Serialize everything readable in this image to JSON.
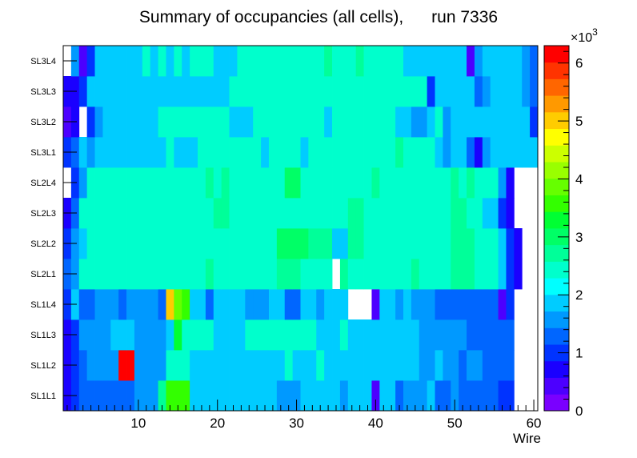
{
  "chart_data": {
    "type": "heatmap",
    "title": "Summary of occupancies (all cells),      run 7336",
    "xlabel": "Wire",
    "ylabel": "",
    "x_range": [
      0.5,
      60.5
    ],
    "x_ticks": [
      10,
      20,
      30,
      40,
      50,
      60
    ],
    "y_labels": [
      "SL1L1",
      "SL1L2",
      "SL1L3",
      "SL1L4",
      "SL2L1",
      "SL2L2",
      "SL2L3",
      "SL2L4",
      "SL3L1",
      "SL3L2",
      "SL3L3",
      "SL3L4"
    ],
    "z_range": [
      0,
      6300
    ],
    "z_multiplier_label": "×10",
    "z_multiplier_exp": "3",
    "z_tick_labels": [
      "0",
      "1",
      "2",
      "3",
      "4",
      "5",
      "6"
    ],
    "z_tick_values": [
      0,
      1000,
      2000,
      3000,
      4000,
      5000,
      6000
    ],
    "palette": [
      "#7a00ff",
      "#4c00ff",
      "#1a00ff",
      "#0033ff",
      "#0066ff",
      "#0099ff",
      "#00ccff",
      "#00ffff",
      "#00ffcc",
      "#00ff99",
      "#00ff66",
      "#00ff33",
      "#33ff00",
      "#66ff00",
      "#99ff00",
      "#ccff00",
      "#ffff00",
      "#ffcc00",
      "#ff9900",
      "#ff6600",
      "#ff3300",
      "#ff0000"
    ],
    "rows": [
      {
        "layer": "SL1L1",
        "values": [
          800,
          1100,
          1400,
          1400,
          1400,
          1400,
          1400,
          1400,
          1400,
          1600,
          1600,
          1700,
          2600,
          3500,
          3500,
          3500,
          2000,
          2000,
          2000,
          2000,
          2000,
          2000,
          2000,
          2000,
          2000,
          2000,
          2000,
          1700,
          1700,
          1700,
          2000,
          2000,
          2000,
          2000,
          2000,
          1700,
          2000,
          2000,
          2000,
          450,
          2000,
          2000,
          1400,
          1700,
          1700,
          1700,
          2000,
          1400,
          1400,
          1700,
          1400,
          1400,
          1400,
          1400,
          1400,
          1100,
          1100,
          0,
          0,
          0
        ]
      },
      {
        "layer": "SL1L2",
        "values": [
          700,
          1100,
          1400,
          1700,
          1700,
          1700,
          1700,
          6200,
          6200,
          1700,
          1700,
          1700,
          1700,
          2300,
          2300,
          2300,
          2000,
          2000,
          2000,
          2000,
          2000,
          2000,
          2000,
          2000,
          2000,
          2000,
          2000,
          2000,
          2300,
          2000,
          2000,
          2000,
          2300,
          2000,
          2000,
          2000,
          2000,
          2000,
          2000,
          2000,
          2000,
          2000,
          2000,
          2000,
          2000,
          1700,
          1700,
          2000,
          1700,
          1700,
          1400,
          1700,
          1700,
          1400,
          1400,
          1400,
          1400,
          0,
          0,
          0
        ]
      },
      {
        "layer": "SL1L3",
        "values": [
          700,
          1100,
          1700,
          1700,
          1700,
          1700,
          2000,
          2000,
          2000,
          1700,
          1700,
          1700,
          1700,
          2000,
          3200,
          2300,
          2300,
          2300,
          2300,
          2000,
          2000,
          2000,
          2000,
          2300,
          2300,
          2300,
          2300,
          2300,
          2300,
          2300,
          2300,
          2300,
          2000,
          2000,
          2000,
          2300,
          2000,
          2000,
          2000,
          2000,
          2000,
          2000,
          2000,
          2000,
          2000,
          1700,
          1700,
          1700,
          1700,
          1700,
          1700,
          1400,
          1400,
          1400,
          1400,
          1400,
          1400,
          0,
          0,
          0
        ]
      },
      {
        "layer": "SL1L4",
        "values": [
          1000,
          2000,
          1400,
          1400,
          1700,
          1700,
          1700,
          1400,
          1700,
          1700,
          1700,
          1700,
          1400,
          5100,
          3800,
          3500,
          2000,
          2000,
          1400,
          2000,
          2000,
          2000,
          2000,
          1700,
          1700,
          1700,
          2000,
          2000,
          1400,
          1400,
          2000,
          2000,
          1700,
          2000,
          2000,
          2000,
          0,
          0,
          0,
          500,
          2000,
          2000,
          1700,
          2000,
          1700,
          1700,
          1700,
          1400,
          1400,
          1400,
          1400,
          1400,
          1400,
          1400,
          1400,
          500,
          1100,
          0,
          0,
          0
        ]
      },
      {
        "layer": "SL2L1",
        "values": [
          1400,
          1700,
          2300,
          2300,
          2300,
          2300,
          2300,
          2300,
          2300,
          2300,
          2300,
          2300,
          2300,
          2300,
          2300,
          2300,
          2300,
          2300,
          2600,
          2300,
          2300,
          2300,
          2300,
          2300,
          2300,
          2300,
          2300,
          2600,
          2600,
          2600,
          2300,
          2300,
          2300,
          2300,
          0,
          2600,
          2300,
          2300,
          2300,
          2300,
          2300,
          2300,
          2300,
          2300,
          2600,
          2300,
          2300,
          2300,
          2300,
          2600,
          2600,
          2600,
          2300,
          2300,
          2300,
          2000,
          1100,
          800,
          0,
          0
        ]
      },
      {
        "layer": "SL2L2",
        "values": [
          1000,
          1700,
          2000,
          2300,
          2300,
          2300,
          2300,
          2300,
          2300,
          2300,
          2300,
          2300,
          2300,
          2300,
          2300,
          2300,
          2300,
          2300,
          2300,
          2300,
          2300,
          2300,
          2300,
          2300,
          2300,
          2300,
          2300,
          2900,
          2900,
          2900,
          2900,
          2600,
          2600,
          2600,
          2000,
          2000,
          2600,
          2600,
          2300,
          2300,
          2300,
          2300,
          2300,
          2300,
          2300,
          2300,
          2300,
          2300,
          2300,
          2600,
          2600,
          2600,
          2300,
          2300,
          2300,
          2000,
          1100,
          800,
          0,
          0
        ]
      },
      {
        "layer": "SL2L3",
        "values": [
          800,
          1400,
          2300,
          2300,
          2300,
          2300,
          2300,
          2300,
          2300,
          2300,
          2300,
          2300,
          2300,
          2300,
          2300,
          2300,
          2300,
          2300,
          2300,
          2600,
          2600,
          2300,
          2300,
          2300,
          2300,
          2300,
          2300,
          2300,
          2300,
          2300,
          2300,
          2300,
          2300,
          2300,
          2300,
          2300,
          2600,
          2600,
          2300,
          2300,
          2300,
          2300,
          2300,
          2300,
          2300,
          2300,
          2300,
          2300,
          2300,
          2600,
          2600,
          2300,
          2300,
          2000,
          2000,
          1100,
          800,
          0,
          0,
          0
        ]
      },
      {
        "layer": "SL2L4",
        "values": [
          0,
          1100,
          1700,
          2300,
          2300,
          2300,
          2300,
          2300,
          2300,
          2300,
          2300,
          2300,
          2300,
          2300,
          2300,
          2300,
          2300,
          2300,
          2600,
          2300,
          2600,
          2300,
          2300,
          2300,
          2300,
          2300,
          2300,
          2300,
          2900,
          2900,
          2300,
          2300,
          2300,
          2300,
          2300,
          2300,
          2300,
          2300,
          2300,
          2600,
          2300,
          2300,
          2300,
          2300,
          2300,
          2300,
          2300,
          2300,
          2300,
          2600,
          2300,
          2600,
          2300,
          2300,
          2300,
          1700,
          800,
          0,
          0,
          0
        ]
      },
      {
        "layer": "SL3L1",
        "values": [
          1000,
          1400,
          2000,
          1700,
          2000,
          2000,
          2000,
          2000,
          2000,
          2000,
          2000,
          2000,
          2000,
          2300,
          2000,
          2000,
          2000,
          2300,
          2300,
          2300,
          2300,
          2300,
          2300,
          2300,
          2300,
          2000,
          2300,
          2300,
          2300,
          2300,
          2000,
          2300,
          2300,
          2300,
          2300,
          2300,
          2300,
          2300,
          2300,
          2300,
          2300,
          2300,
          2600,
          2300,
          2300,
          2300,
          2300,
          2000,
          1700,
          2000,
          2000,
          1400,
          800,
          1700,
          2000,
          2000,
          2000,
          2000,
          2000,
          2000
        ]
      },
      {
        "layer": "SL3L2",
        "values": [
          500,
          800,
          0,
          1100,
          1700,
          2000,
          2000,
          2000,
          2000,
          2000,
          2000,
          2000,
          2300,
          2300,
          2300,
          2300,
          2300,
          2300,
          2300,
          2300,
          2300,
          2000,
          2000,
          2000,
          2300,
          2300,
          2300,
          2300,
          2300,
          2300,
          2300,
          2300,
          2300,
          2000,
          2300,
          2300,
          2300,
          2300,
          2300,
          2300,
          2300,
          2300,
          2000,
          2000,
          1700,
          1700,
          2000,
          2300,
          1700,
          2000,
          2000,
          2000,
          2000,
          2000,
          2000,
          2000,
          2000,
          2000,
          2000,
          1100
        ]
      },
      {
        "layer": "SL3L3",
        "values": [
          800,
          800,
          1100,
          2000,
          2000,
          2000,
          2000,
          2000,
          2000,
          2000,
          2000,
          2000,
          2000,
          2000,
          2000,
          2000,
          2000,
          2000,
          2000,
          2000,
          2000,
          2300,
          2300,
          2300,
          2300,
          2300,
          2300,
          2300,
          2300,
          2300,
          2300,
          2300,
          2300,
          2300,
          2300,
          2300,
          2300,
          2300,
          2300,
          2300,
          2300,
          2300,
          2300,
          2300,
          2300,
          2300,
          1100,
          2000,
          2000,
          2000,
          2000,
          2000,
          1400,
          1700,
          2000,
          2000,
          2000,
          2000,
          1700,
          1400
        ]
      },
      {
        "layer": "SL3L4",
        "values": [
          0,
          1700,
          500,
          1100,
          2000,
          2000,
          2000,
          2000,
          2000,
          2000,
          2300,
          2000,
          2300,
          2000,
          2300,
          2000,
          2300,
          2300,
          2300,
          2000,
          2000,
          2000,
          2300,
          2300,
          2300,
          2300,
          2300,
          2300,
          2300,
          2300,
          2300,
          2300,
          2300,
          2600,
          2300,
          2300,
          2300,
          2600,
          2300,
          2300,
          2300,
          2300,
          2300,
          2000,
          2000,
          2000,
          2000,
          2000,
          2000,
          2000,
          2000,
          500,
          1700,
          2000,
          2000,
          2000,
          2000,
          2000,
          1700,
          1400
        ]
      }
    ]
  }
}
